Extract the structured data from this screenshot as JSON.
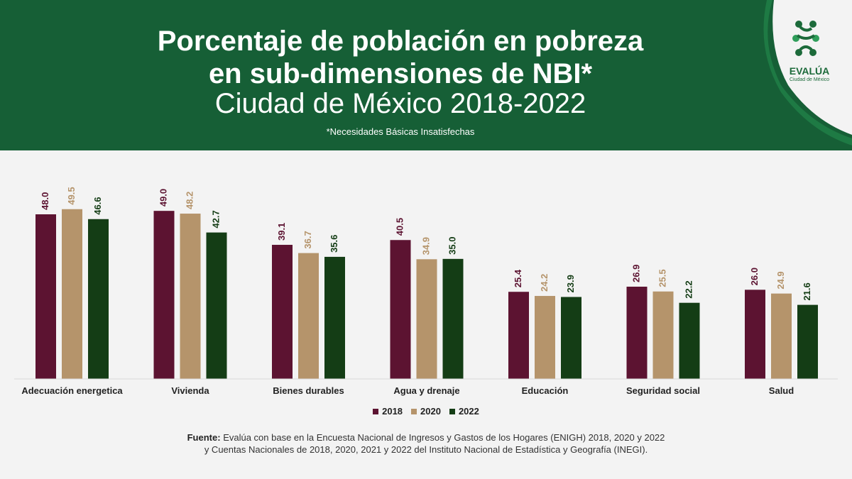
{
  "header": {
    "title_line1": "Porcentaje de población en pobreza",
    "title_line2": "en sub-dimensiones de NBI*",
    "title_line3": "Ciudad de México 2018-2022",
    "note": "*Necesidades Básicas Insatisfechas"
  },
  "logo": {
    "name": "EVALÚA",
    "sub": "Ciudad de México",
    "icon": "evalua-logo-icon"
  },
  "colors": {
    "header_bg": "#165f36",
    "s2018": "#5c1331",
    "s2020": "#b5946b",
    "s2022": "#143d15"
  },
  "chart_data": {
    "type": "bar",
    "title": "Porcentaje de población en pobreza en sub-dimensiones de NBI*",
    "categories": [
      "Adecuación energetica",
      "Vivienda",
      "Bienes durables",
      "Agua y drenaje",
      "Educación",
      "Seguridad social",
      "Salud"
    ],
    "series": [
      {
        "name": "2018",
        "values": [
          48.0,
          49.0,
          39.1,
          40.5,
          25.4,
          26.9,
          26.0
        ],
        "color": "#5c1331"
      },
      {
        "name": "2020",
        "values": [
          49.5,
          48.2,
          36.7,
          34.9,
          24.2,
          25.5,
          24.9
        ],
        "color": "#b5946b"
      },
      {
        "name": "2022",
        "values": [
          46.6,
          42.7,
          35.6,
          35.0,
          23.9,
          22.2,
          21.6
        ],
        "color": "#143d15"
      }
    ],
    "ylim": [
      0,
      50
    ],
    "xlabel": "",
    "ylabel": "",
    "legend": [
      "2018",
      "2020",
      "2022"
    ],
    "legend_position": "bottom-center",
    "grid": false
  },
  "footer": {
    "label": "Fuente:",
    "line1": "Evalúa con base en la Encuesta Nacional de Ingresos y Gastos de los Hogares (ENIGH) 2018, 2020 y 2022",
    "line2": "y Cuentas Nacionales de 2018, 2020, 2021 y 2022 del Instituto Nacional de Estadística y Geografía (INEGI)."
  }
}
